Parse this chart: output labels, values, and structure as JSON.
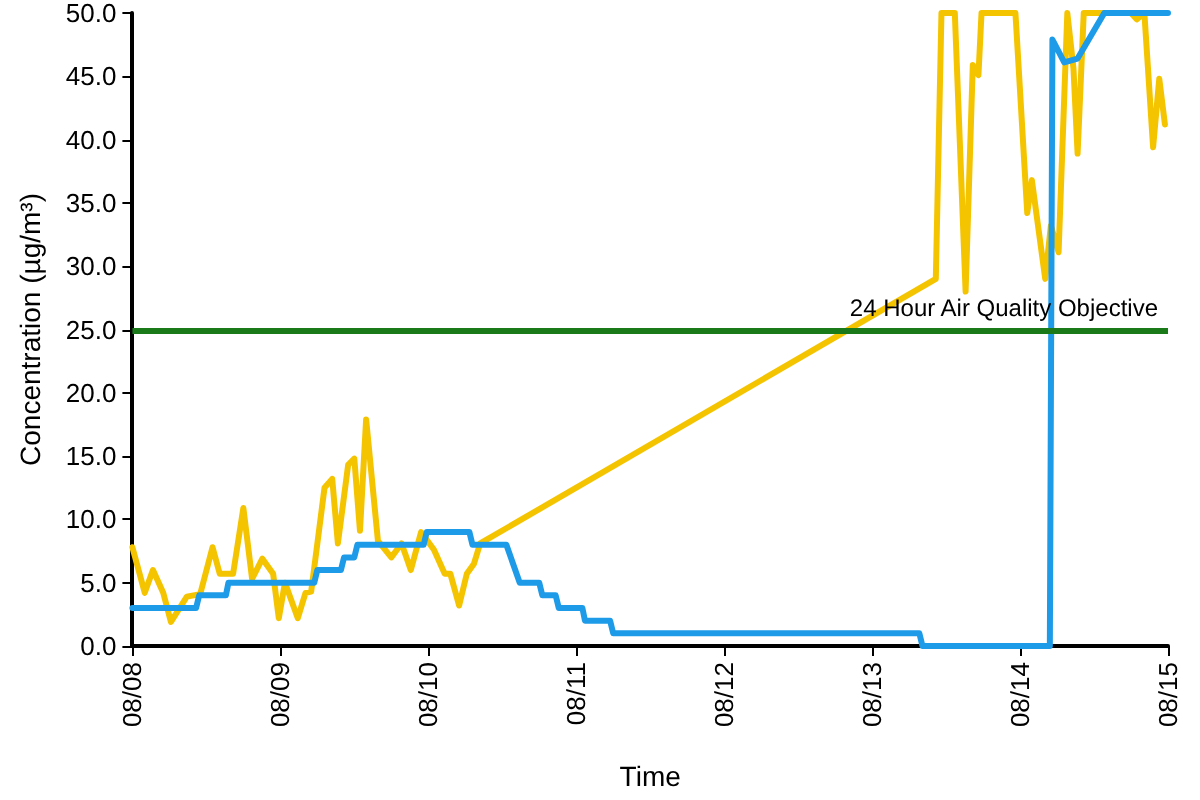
{
  "chart_data": {
    "type": "line",
    "xlabel": "Time",
    "ylabel": "Concentration (µg/m³)",
    "xlim": [
      "--08-08",
      "--08-15"
    ],
    "xticks": [
      {
        "value": "--08-08",
        "label": "08/08"
      },
      {
        "value": "--08-09",
        "label": "08/09"
      },
      {
        "value": "--08-10",
        "label": "08/10"
      },
      {
        "value": "--08-11",
        "label": "08/11"
      },
      {
        "value": "--08-12",
        "label": "08/12"
      },
      {
        "value": "--08-13",
        "label": "08/13"
      },
      {
        "value": "--08-14",
        "label": "08/14"
      },
      {
        "value": "--08-15",
        "label": "08/15"
      }
    ],
    "ylim": [
      0,
      50
    ],
    "yticks": [
      {
        "value": 0,
        "label": "0.0"
      },
      {
        "value": 5,
        "label": "5.0"
      },
      {
        "value": 10,
        "label": "10.0"
      },
      {
        "value": 15,
        "label": "15.0"
      },
      {
        "value": 20,
        "label": "20.0"
      },
      {
        "value": 25,
        "label": "25.0"
      },
      {
        "value": 30,
        "label": "30.0"
      },
      {
        "value": 35,
        "label": "35.0"
      },
      {
        "value": 40,
        "label": "40.0"
      },
      {
        "value": 45,
        "label": "45.0"
      },
      {
        "value": 50,
        "label": "50.0"
      }
    ],
    "grid": false,
    "marker": "none",
    "line_style": "solid",
    "series": [
      {
        "color": "#f5c400",
        "x": [
          "--08-08T00:00",
          "--08-08T02:00",
          "--08-08T03:20",
          "--08-08T05:00",
          "--08-08T06:15",
          "--08-08T08:50",
          "--08-08T11:00",
          "--08-08T13:00",
          "--08-08T14:10",
          "--08-08T16:20",
          "--08-08T18:00",
          "--08-08T19:25",
          "--08-08T21:05",
          "--08-08T22:50",
          "--08-08T23:45",
          "--08-09T00:45",
          "--08-09T02:50",
          "--08-09T04:05",
          "--08-09T05:00",
          "--08-09T07:10",
          "--08-09T08:25",
          "--08-09T09:20",
          "--08-09T11:00",
          "--08-09T12:00",
          "--08-09T12:55",
          "--08-09T13:55",
          "--08-09T15:50",
          "--08-09T18:00",
          "--08-09T19:40",
          "--08-09T21:10",
          "--08-09T22:50",
          "--08-10T00:55",
          "--08-10T02:40",
          "--08-10T03:35",
          "--08-10T05:00",
          "--08-10T06:15",
          "--08-10T07:25",
          "--08-10T08:25",
          "--08-13T10:20",
          "--08-13T11:15",
          "--08-13T13:25",
          "--08-13T15:10",
          "--08-13T16:20",
          "--08-13T17:15",
          "--08-13T17:45",
          "--08-13T23:15",
          "--08-14T01:10",
          "--08-14T01:55",
          "--08-14T04:05",
          "--08-14T05:00",
          "--08-14T06:15",
          "--08-14T07:40",
          "--08-14T08:40",
          "--08-14T09:20",
          "--08-14T10:20",
          "--08-14T18:00",
          "--08-14T18:55",
          "--08-14T20:10",
          "--08-14T21:35",
          "--08-14T22:35",
          "--08-14T23:30"
        ],
        "values": [
          7.8,
          4.2,
          6,
          4.2,
          1.9,
          3.9,
          4.1,
          7.8,
          5.7,
          5.7,
          10.9,
          5.3,
          6.9,
          5.7,
          2.2,
          5,
          2.2,
          4.2,
          4.3,
          12.5,
          13.2,
          8.1,
          14.3,
          14.8,
          9.1,
          17.9,
          8.3,
          7,
          8.1,
          6,
          9,
          7.6,
          5.7,
          5.7,
          3.2,
          5.7,
          6.5,
          8.1,
          29,
          50,
          50,
          28,
          45.9,
          45.1,
          50,
          50,
          34.2,
          36.8,
          29,
          33.2,
          31.1,
          50,
          45.6,
          38.9,
          50,
          50,
          49.5,
          50,
          39.4,
          44.8,
          41.2
        ]
      },
      {
        "color": "#1e9be8",
        "x": [
          "--08-08T00:00",
          "--08-08T10:20",
          "--08-08T10:50",
          "--08-08T15:10",
          "--08-08T15:35",
          "--08-09T05:30",
          "--08-09T06:00",
          "--08-09T09:50",
          "--08-09T10:20",
          "--08-09T12:00",
          "--08-09T12:30",
          "--08-09T23:15",
          "--08-09T23:45",
          "--08-10T06:40",
          "--08-10T07:10",
          "--08-10T12:40",
          "--08-10T14:50",
          "--08-10T18:00",
          "--08-10T18:30",
          "--08-10T20:40",
          "--08-10T21:10",
          "--08-11T01:00",
          "--08-11T01:25",
          "--08-11T05:30",
          "--08-11T06:00",
          "--08-13T07:40",
          "--08-13T08:10",
          "--08-14T04:50",
          "--08-14T05:15",
          "--08-14T07:10",
          "--08-14T09:20",
          "--08-14T13:40",
          "--08-15T00:00"
        ],
        "values": [
          3,
          3,
          4,
          4,
          5,
          5,
          6,
          6,
          7,
          7,
          8,
          8,
          9,
          9,
          8,
          8,
          5,
          5,
          4,
          4,
          3,
          3,
          2,
          2,
          1,
          1,
          0,
          0,
          47.9,
          46.1,
          46.4,
          50,
          50
        ]
      }
    ],
    "ref_lines": [
      {
        "axis": "y",
        "value": 25,
        "label": "24 Hour Air Quality Objective",
        "color": "#1a7a1a",
        "line_style": "solid"
      }
    ]
  }
}
